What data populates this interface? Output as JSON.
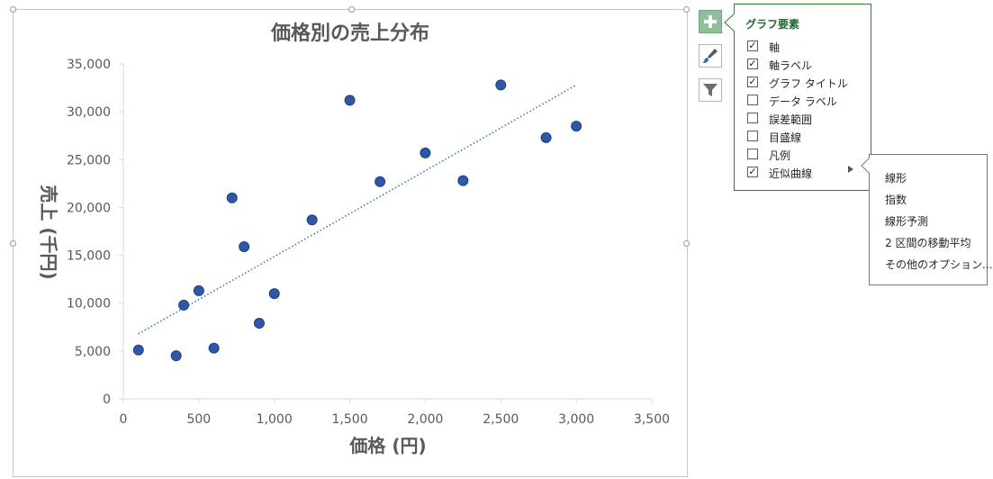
{
  "chart_data": {
    "type": "scatter",
    "title": "価格別の売上分布",
    "xlabel": "価格 (円)",
    "ylabel": "売上 (千円)",
    "xlim": [
      0,
      3500
    ],
    "ylim": [
      0,
      35000
    ],
    "x_ticks": [
      0,
      500,
      1000,
      1500,
      2000,
      2500,
      3000,
      3500
    ],
    "y_ticks": [
      0,
      5000,
      10000,
      15000,
      20000,
      25000,
      30000,
      35000
    ],
    "x_tick_labels": [
      "0",
      "500",
      "1,000",
      "1,500",
      "2,000",
      "2,500",
      "3,000",
      "3,500"
    ],
    "y_tick_labels": [
      "0",
      "5,000",
      "10,000",
      "15,000",
      "20,000",
      "25,000",
      "30,000",
      "35,000"
    ],
    "grid": false,
    "marker_color": "#2e58a6",
    "trendline": {
      "type": "linear",
      "color": "#2e75b6",
      "style": "dotted",
      "x_range": [
        100,
        3000
      ],
      "y_range": [
        6800,
        32800
      ]
    },
    "points": [
      {
        "x": 100,
        "y": 5100
      },
      {
        "x": 350,
        "y": 4500
      },
      {
        "x": 400,
        "y": 9800
      },
      {
        "x": 500,
        "y": 11300
      },
      {
        "x": 600,
        "y": 5300
      },
      {
        "x": 720,
        "y": 21000
      },
      {
        "x": 800,
        "y": 15900
      },
      {
        "x": 900,
        "y": 7900
      },
      {
        "x": 1000,
        "y": 11000
      },
      {
        "x": 1250,
        "y": 18700
      },
      {
        "x": 1500,
        "y": 31200
      },
      {
        "x": 1700,
        "y": 22700
      },
      {
        "x": 2000,
        "y": 25700
      },
      {
        "x": 2250,
        "y": 22800
      },
      {
        "x": 2500,
        "y": 32800
      },
      {
        "x": 2800,
        "y": 27300
      },
      {
        "x": 3000,
        "y": 28500
      }
    ]
  },
  "toolbar": {
    "add_icon": "plus-icon",
    "style_icon": "paintbrush-icon",
    "filter_icon": "funnel-icon",
    "accent": "#8fbf9a"
  },
  "elements_panel": {
    "title": "グラフ要素",
    "options": [
      {
        "label": "軸",
        "checked": true
      },
      {
        "label": "軸ラベル",
        "checked": true
      },
      {
        "label": "グラフ タイトル",
        "checked": true
      },
      {
        "label": "データ ラベル",
        "checked": false
      },
      {
        "label": "誤差範囲",
        "checked": false
      },
      {
        "label": "目盛線",
        "checked": false
      },
      {
        "label": "凡例",
        "checked": false
      },
      {
        "label": "近似曲線",
        "checked": true
      }
    ]
  },
  "trendline_menu": {
    "items": [
      "線形",
      "指数",
      "線形予測",
      "2 区間の移動平均",
      "その他のオプション..."
    ]
  }
}
